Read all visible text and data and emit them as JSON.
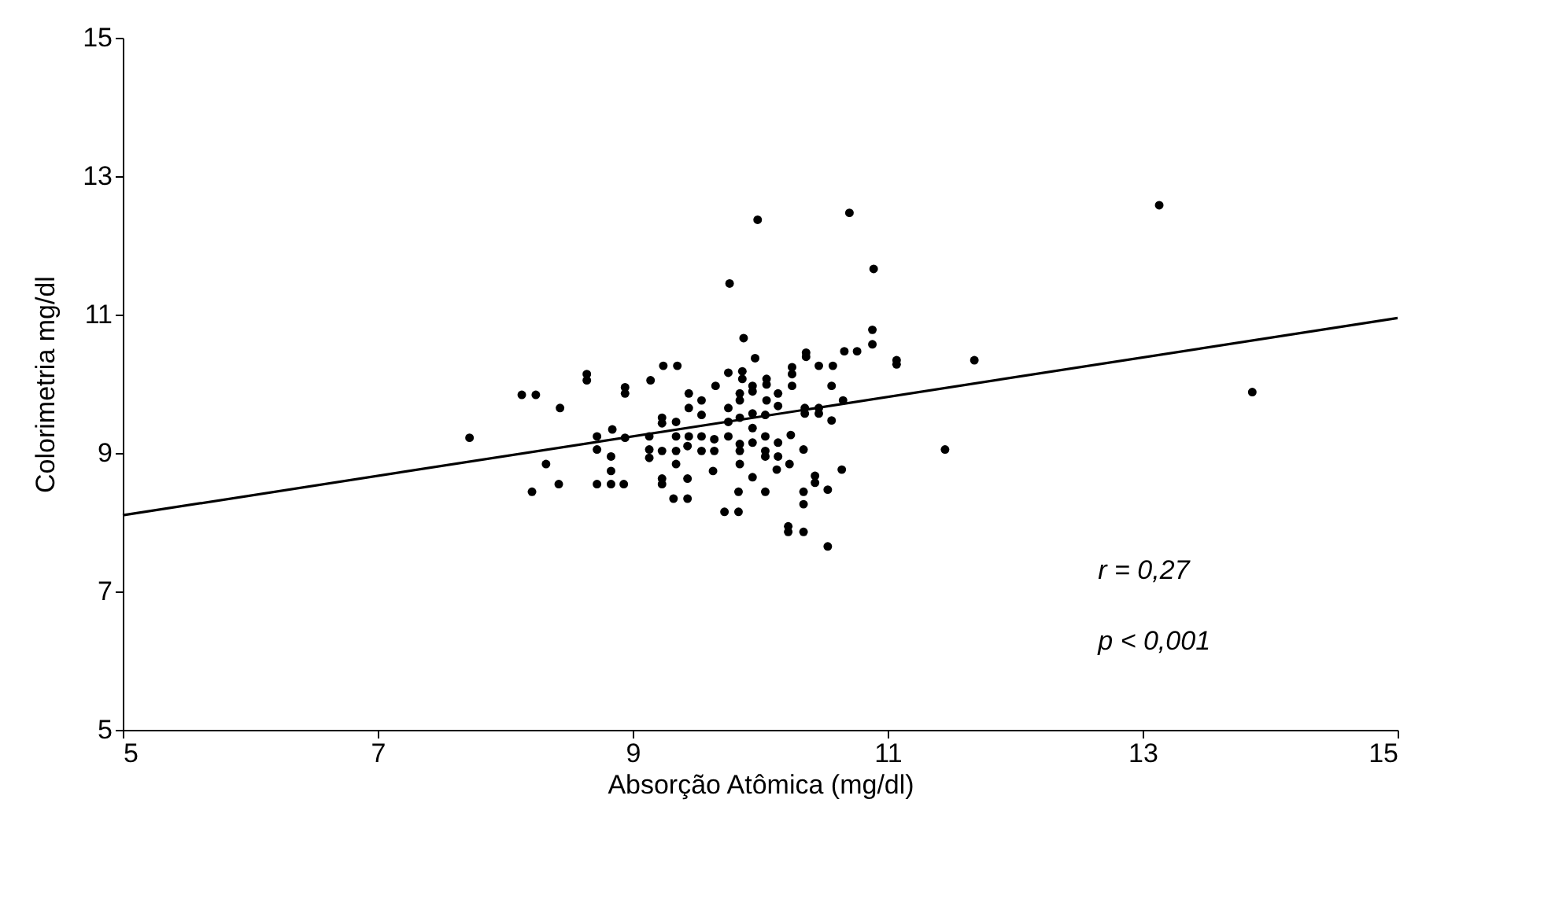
{
  "chart_data": {
    "type": "scatter",
    "xlabel": "Absorção Atômica (mg/dl)",
    "ylabel": "Colorimetria mg/dl",
    "xlim": [
      5,
      15
    ],
    "ylim": [
      5,
      15
    ],
    "xticks": [
      5,
      7,
      9,
      11,
      13,
      15
    ],
    "yticks": [
      5,
      7,
      9,
      11,
      13,
      15
    ],
    "grid": false,
    "annotations": [
      "r = 0,27",
      "p < 0,001"
    ],
    "series": [
      {
        "color": "#000000",
        "marker": "circle",
        "x": [
          9.98,
          9.76,
          9.87,
          9.96,
          7.72,
          8.13,
          8.24,
          8.43,
          8.64,
          8.64,
          8.94,
          8.94,
          9.14,
          9.24,
          9.35,
          8.32,
          8.21,
          8.42,
          8.72,
          8.83,
          8.93,
          8.83,
          8.83,
          8.72,
          8.72,
          8.84,
          8.94,
          9.13,
          9.13,
          9.13,
          9.23,
          9.23,
          9.34,
          9.23,
          9.34,
          9.34,
          9.34,
          9.23,
          9.23,
          9.43,
          9.32,
          9.43,
          9.44,
          9.44,
          9.54,
          9.54,
          9.44,
          9.43,
          9.54,
          9.54,
          9.64,
          9.64,
          9.63,
          9.65,
          9.75,
          9.75,
          9.75,
          9.75,
          9.86,
          9.86,
          9.84,
          9.84,
          9.84,
          9.84,
          9.84,
          9.84,
          9.83,
          9.72,
          9.83,
          9.94,
          9.94,
          9.94,
          9.94,
          9.94,
          9.94,
          10.05,
          10.05,
          10.05,
          10.04,
          10.04,
          10.04,
          10.04,
          10.04,
          10.14,
          10.14,
          10.14,
          10.14,
          10.13,
          10.7,
          10.89,
          10.88,
          10.88,
          10.66,
          10.76,
          11.07,
          11.07,
          10.36,
          10.36,
          10.46,
          10.57,
          10.25,
          10.25,
          10.25,
          10.56,
          10.35,
          10.35,
          10.46,
          10.46,
          10.65,
          10.56,
          10.24,
          10.34,
          10.23,
          10.34,
          10.34,
          10.43,
          10.43,
          10.53,
          10.64,
          10.22,
          10.22,
          10.34,
          10.53,
          11.45,
          11.68,
          13.13,
          13.86
        ],
        "values": [
          12.37,
          11.45,
          10.66,
          10.37,
          9.22,
          9.84,
          9.84,
          9.65,
          10.14,
          10.05,
          9.95,
          9.86,
          10.05,
          10.26,
          10.26,
          8.84,
          8.44,
          8.55,
          8.55,
          8.55,
          8.55,
          8.74,
          8.95,
          9.24,
          9.05,
          9.34,
          9.22,
          9.24,
          9.05,
          8.93,
          9.51,
          9.43,
          9.45,
          9.03,
          9.24,
          9.03,
          8.84,
          8.63,
          8.55,
          8.63,
          8.34,
          8.34,
          9.86,
          9.65,
          9.76,
          9.55,
          9.24,
          9.1,
          9.24,
          9.03,
          9.2,
          9.03,
          8.74,
          9.97,
          10.16,
          9.65,
          9.45,
          9.24,
          10.18,
          10.07,
          9.86,
          9.76,
          9.51,
          9.13,
          9.03,
          8.84,
          8.44,
          8.15,
          8.15,
          9.97,
          9.89,
          9.57,
          9.36,
          9.15,
          8.65,
          10.07,
          9.99,
          9.76,
          9.55,
          9.24,
          9.03,
          8.95,
          8.44,
          9.86,
          9.68,
          9.15,
          8.95,
          8.76,
          12.47,
          11.66,
          10.78,
          10.57,
          10.47,
          10.47,
          10.34,
          10.28,
          10.45,
          10.39,
          10.26,
          10.26,
          10.24,
          10.14,
          9.97,
          9.97,
          9.65,
          9.57,
          9.65,
          9.57,
          9.76,
          9.47,
          9.26,
          9.05,
          8.84,
          8.44,
          8.26,
          8.67,
          8.57,
          8.47,
          8.76,
          7.94,
          7.86,
          7.86,
          7.65,
          9.05,
          10.34,
          12.58,
          9.88
        ]
      },
      {
        "type": "line",
        "color": "#000000",
        "marker": "none",
        "line_style": "solid",
        "x": [
          5,
          15
        ],
        "values": [
          8.1,
          10.95
        ]
      }
    ]
  }
}
